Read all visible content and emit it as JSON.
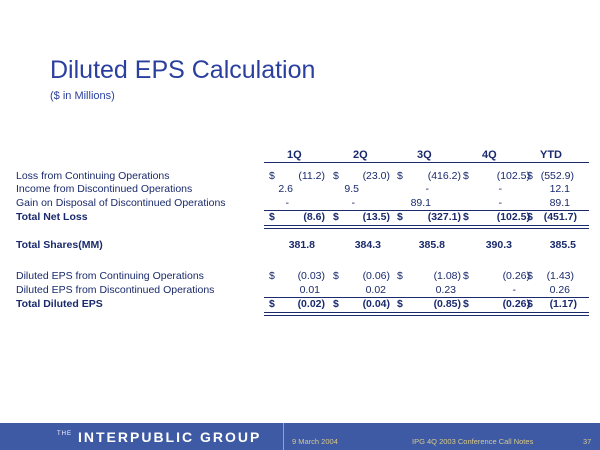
{
  "title": "Diluted EPS Calculation",
  "subtitle": "($ in Millions)",
  "columns": [
    "1Q",
    "2Q",
    "3Q",
    "4Q",
    "YTD"
  ],
  "rows": [
    {
      "label": "Loss from Continuing Operations",
      "dollar": [
        "$",
        "$",
        "$",
        "$",
        "$"
      ],
      "values": [
        "(11.2)",
        "(23.0)",
        "(416.2)",
        "(102.5)",
        "(552.9)"
      ]
    },
    {
      "label": "Income from Discontinued Operations",
      "dollar": [
        "",
        "",
        "",
        "",
        ""
      ],
      "values": [
        "2.6",
        "9.5",
        "-",
        "-",
        "12.1"
      ]
    },
    {
      "label": "Gain on Disposal of Discontinued Operations",
      "dollar": [
        "",
        "",
        "",
        "",
        ""
      ],
      "values": [
        "-",
        "-",
        "89.1",
        "-",
        "89.1"
      ]
    },
    {
      "label": "Total Net Loss",
      "dollar": [
        "$",
        "$",
        "$",
        "$",
        "$"
      ],
      "values": [
        "(8.6)",
        "(13.5)",
        "(327.1)",
        "(102.5)",
        "(451.7)"
      ]
    },
    {
      "label": "Total Shares(MM)",
      "dollar": [
        "",
        "",
        "",
        "",
        ""
      ],
      "values": [
        "381.8",
        "384.3",
        "385.8",
        "390.3",
        "385.5"
      ]
    },
    {
      "label": "Diluted EPS from Continuing Operations",
      "dollar": [
        "$",
        "$",
        "$",
        "$",
        "$"
      ],
      "values": [
        "(0.03)",
        "(0.06)",
        "(1.08)",
        "(0.26)",
        "(1.43)"
      ]
    },
    {
      "label": "Diluted EPS from Discontinued Operations",
      "dollar": [
        "",
        "",
        "",
        "",
        ""
      ],
      "values": [
        "0.01",
        "0.02",
        "0.23",
        "-",
        "0.26"
      ]
    },
    {
      "label": "Total Diluted EPS",
      "dollar": [
        "$",
        "$",
        "$",
        "$",
        "$"
      ],
      "values": [
        "(0.02)",
        "(0.04)",
        "(0.85)",
        "(0.26)",
        "(1.17)"
      ]
    }
  ],
  "footer": {
    "the": "THE",
    "brand": "INTERPUBLIC GROUP",
    "date": "9 March 2004",
    "conference": "IPG 4Q 2003 Conference Call Notes",
    "page": "37"
  }
}
